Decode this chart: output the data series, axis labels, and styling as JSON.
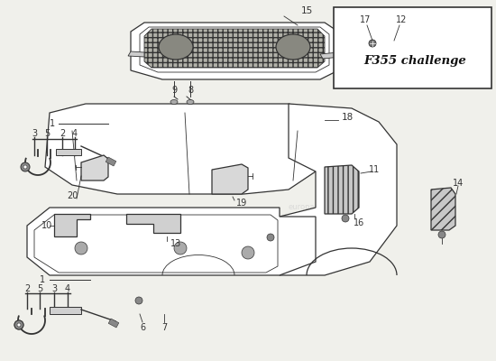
{
  "bg_color": "#f0f0eb",
  "line_color": "#333333",
  "dark_color": "#222222",
  "inset_bg": "#ffffff",
  "watermark": "europarts.com",
  "font_size_label": 7.5,
  "font_size_num": 7,
  "lw_main": 0.9,
  "lw_thin": 0.6
}
